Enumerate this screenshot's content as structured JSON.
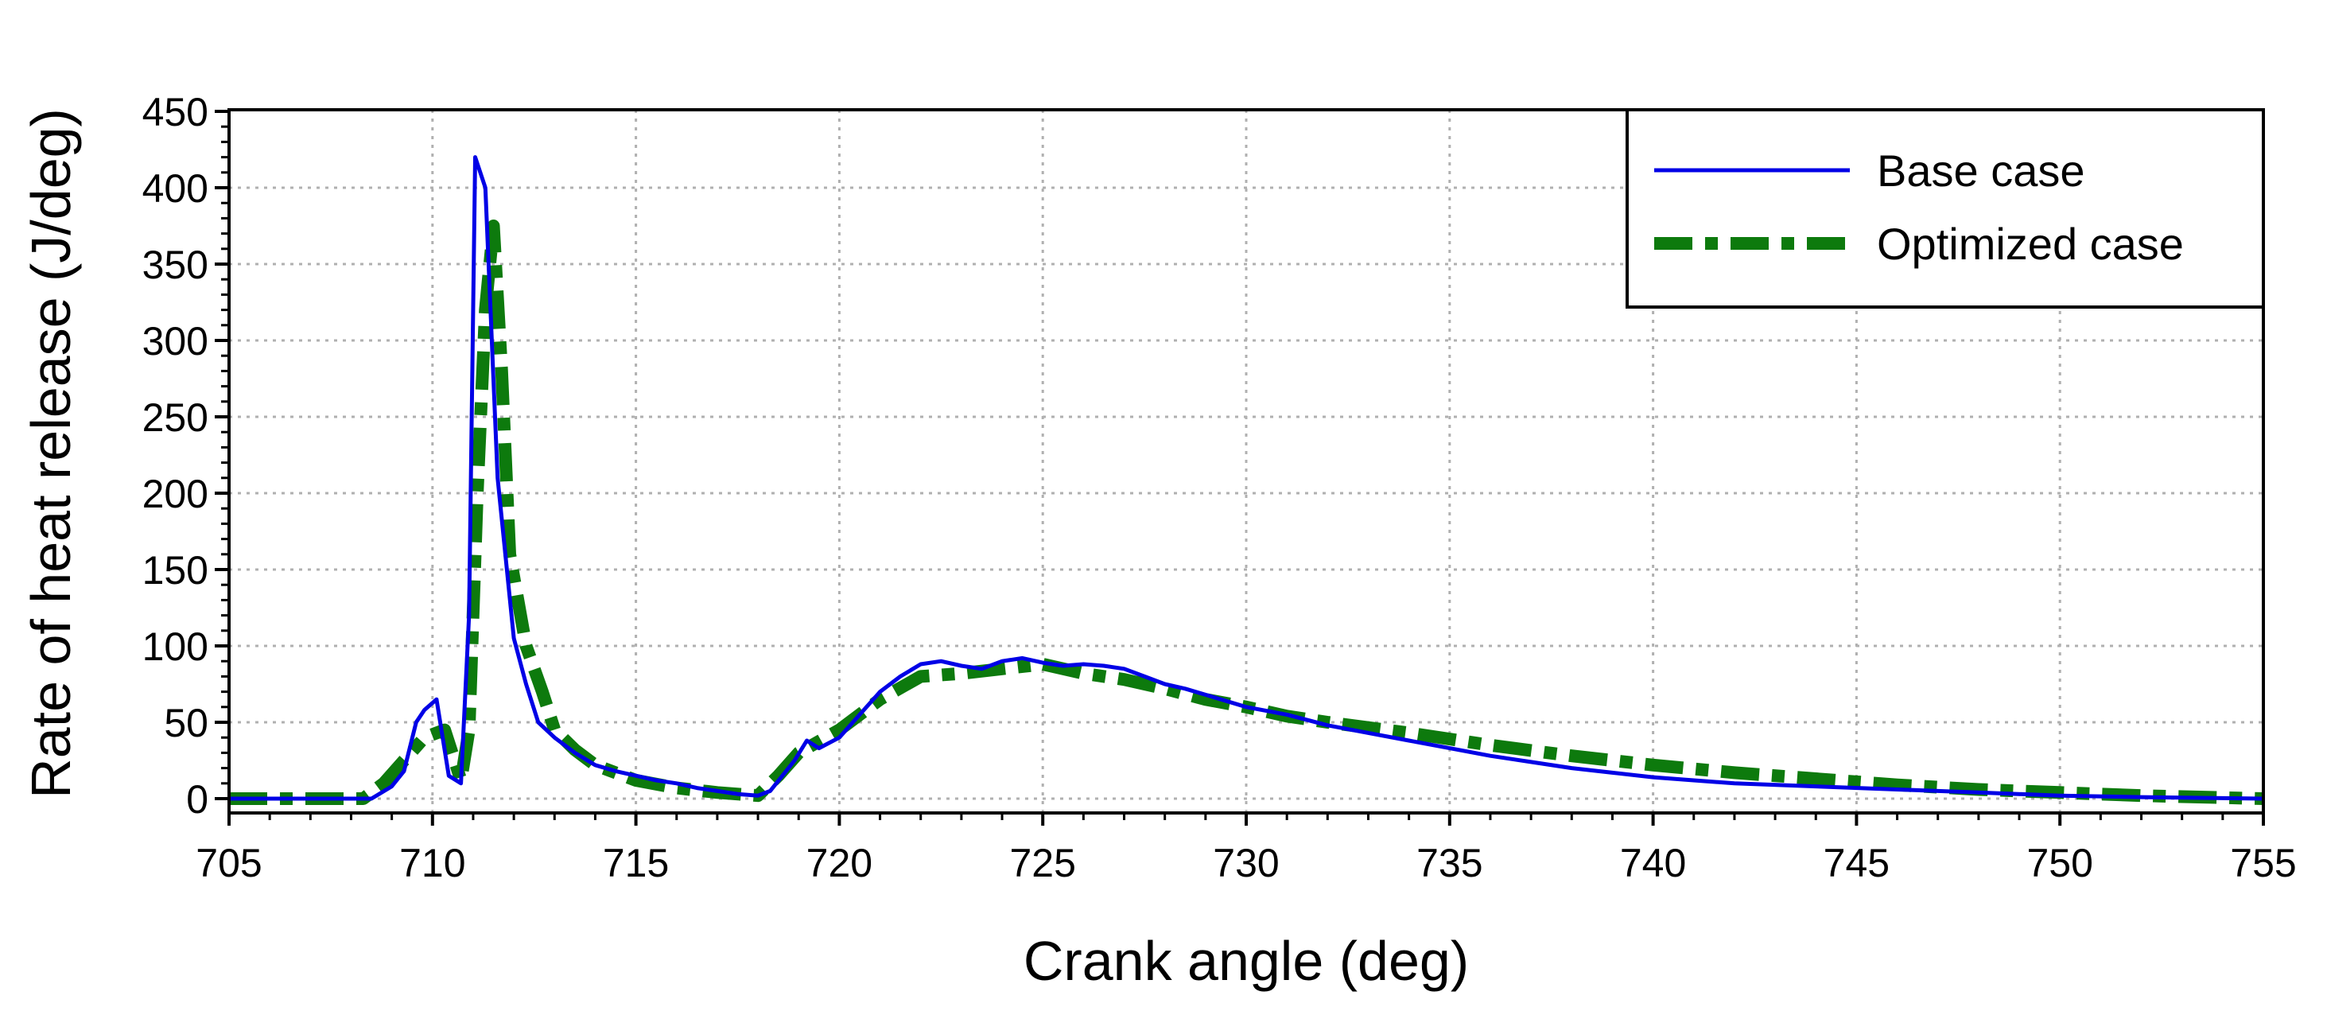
{
  "chart_data": {
    "type": "line",
    "title": "",
    "xlabel": "Crank angle (deg)",
    "ylabel": "Rate of heat release (J/deg)",
    "xlim": [
      705,
      755
    ],
    "ylim": [
      0,
      450
    ],
    "xticks": [
      705,
      710,
      715,
      720,
      725,
      730,
      735,
      740,
      745,
      750,
      755
    ],
    "yticks": [
      0,
      50,
      100,
      150,
      200,
      250,
      300,
      350,
      400,
      450
    ],
    "grid": true,
    "legend_position": "top-right",
    "series": [
      {
        "name": "Base case",
        "color": "#0000e6",
        "style": "solid",
        "x": [
          705,
          708,
          708.5,
          709,
          709.3,
          709.6,
          709.8,
          710.1,
          710.4,
          710.7,
          710.9,
          711.05,
          711.3,
          711.6,
          712,
          712.3,
          712.6,
          713,
          713.5,
          714,
          714.5,
          715,
          715.5,
          716,
          716.5,
          717,
          717.5,
          718,
          718.3,
          718.6,
          718.9,
          719.2,
          719.5,
          720,
          720.5,
          721,
          721.5,
          722,
          722.5,
          723,
          723.5,
          724,
          724.5,
          725,
          725.5,
          726,
          726.5,
          727,
          727.5,
          728,
          728.5,
          729,
          730,
          731,
          732,
          733,
          734,
          735,
          736,
          737,
          738,
          739,
          740,
          741,
          742,
          744,
          746,
          748,
          750,
          752,
          755
        ],
        "y": [
          0,
          0,
          0,
          8,
          18,
          50,
          58,
          65,
          15,
          10,
          120,
          420,
          400,
          210,
          105,
          75,
          50,
          40,
          30,
          22,
          18,
          15,
          12,
          10,
          7,
          5,
          3,
          2,
          5,
          15,
          25,
          38,
          33,
          40,
          55,
          70,
          80,
          88,
          90,
          87,
          85,
          90,
          92,
          89,
          87,
          88,
          87,
          85,
          80,
          75,
          72,
          68,
          60,
          55,
          48,
          43,
          38,
          33,
          28,
          24,
          20,
          17,
          14,
          12,
          10,
          8,
          6,
          4,
          2,
          1,
          0
        ]
      },
      {
        "name": "Optimized case",
        "color": "#0d7a0d",
        "style": "dash-dot",
        "x": [
          705,
          708.3,
          708.8,
          709.3,
          709.8,
          710.3,
          710.7,
          710.9,
          711.1,
          711.3,
          711.5,
          711.7,
          711.9,
          712.3,
          712.7,
          713,
          713.5,
          714,
          715,
          716,
          717,
          718,
          718.5,
          719,
          720,
          721,
          722,
          723,
          724,
          725,
          726,
          727,
          728,
          729,
          730,
          731,
          732,
          734,
          736,
          738,
          740,
          742,
          744,
          746,
          748,
          750,
          752,
          755
        ],
        "y": [
          0,
          0,
          10,
          25,
          40,
          45,
          12,
          45,
          200,
          320,
          375,
          280,
          160,
          100,
          70,
          45,
          32,
          22,
          12,
          7,
          4,
          2,
          15,
          30,
          45,
          65,
          80,
          82,
          85,
          88,
          82,
          78,
          72,
          65,
          60,
          54,
          50,
          43,
          35,
          28,
          22,
          17,
          13,
          9,
          6,
          4,
          2,
          0
        ]
      }
    ]
  }
}
